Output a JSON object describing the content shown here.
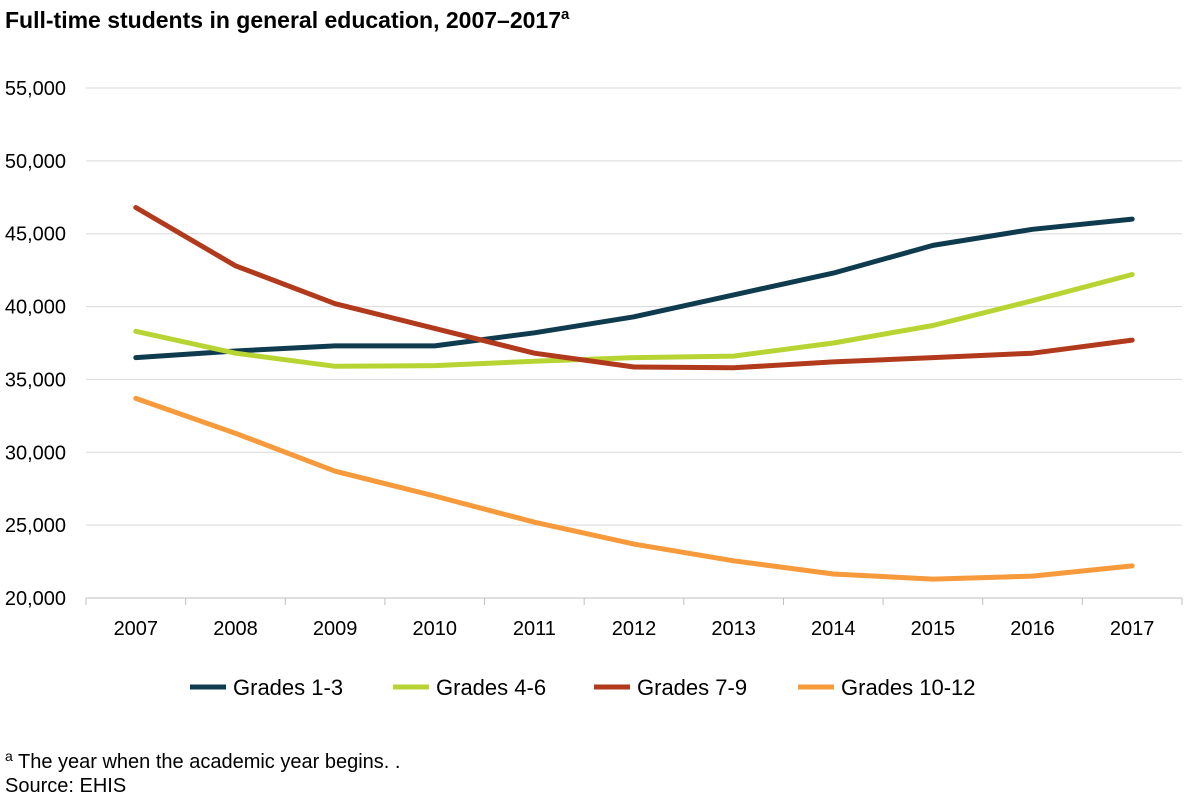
{
  "title": "Full-time students in general education, 2007–2017",
  "title_superscript": "a",
  "footnote": {
    "marker": "a",
    "text": " The year when the academic year begins. ."
  },
  "source": "Source: EHIS",
  "chart_data": {
    "type": "line",
    "x": [
      "2007",
      "2008",
      "2009",
      "2010",
      "2011",
      "2012",
      "2013",
      "2014",
      "2015",
      "2016",
      "2017"
    ],
    "ylim": [
      20000,
      55000
    ],
    "yticks": [
      20000,
      25000,
      30000,
      35000,
      40000,
      45000,
      50000,
      55000
    ],
    "ytick_labels": [
      "20,000",
      "25,000",
      "30,000",
      "35,000",
      "40,000",
      "45,000",
      "50,000",
      "55,000"
    ],
    "grid": true,
    "legend_position": "bottom",
    "series": [
      {
        "name": "Grades 1-3",
        "color": "#0f3b4f",
        "values": [
          36500,
          36950,
          37300,
          37300,
          38200,
          39300,
          40800,
          42300,
          44200,
          45300,
          46000
        ]
      },
      {
        "name": "Grades 4-6",
        "color": "#b8d433",
        "values": [
          38300,
          36800,
          35900,
          35950,
          36250,
          36500,
          36600,
          37500,
          38700,
          40400,
          42200
        ]
      },
      {
        "name": "Grades 7-9",
        "color": "#b23a1c",
        "values": [
          46800,
          42800,
          40200,
          38500,
          36800,
          35850,
          35800,
          36200,
          36500,
          36800,
          37700
        ]
      },
      {
        "name": "Grades 10-12",
        "color": "#f79a3b",
        "values": [
          33700,
          31300,
          28700,
          27000,
          25200,
          23700,
          22550,
          21650,
          21300,
          21500,
          22200
        ]
      }
    ]
  }
}
